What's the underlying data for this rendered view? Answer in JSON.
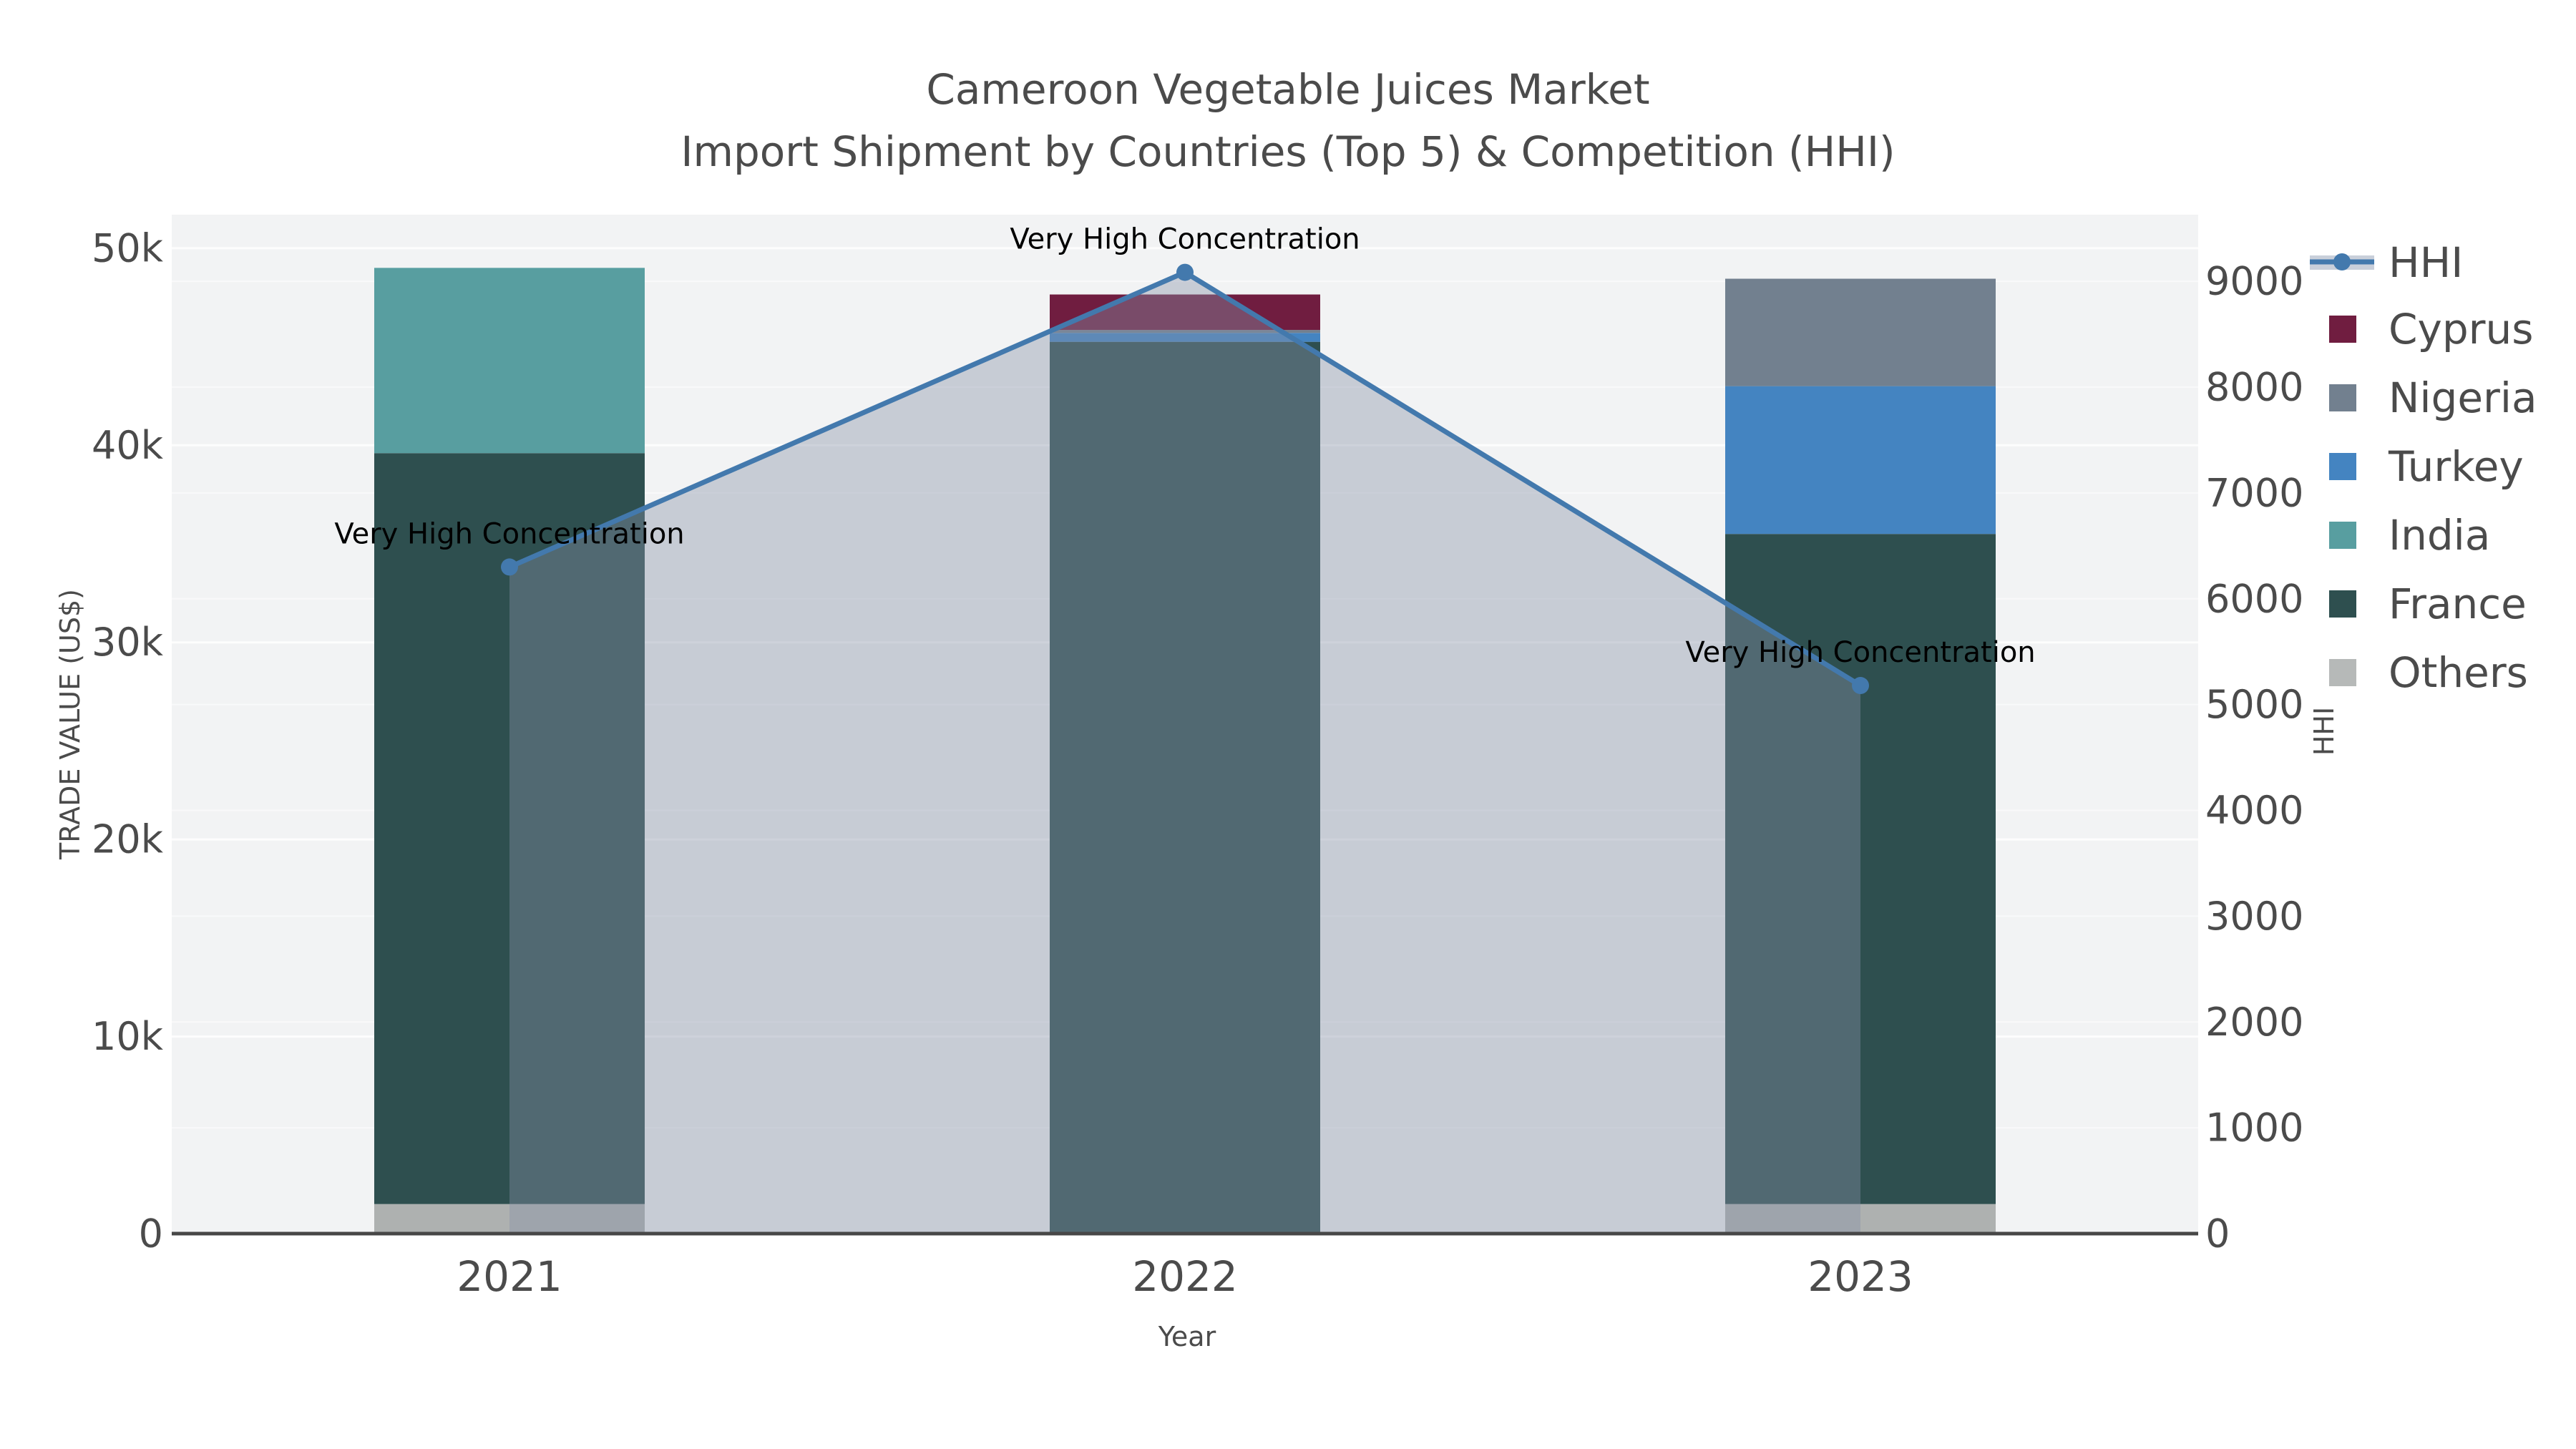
{
  "header": {
    "title_line1": "Cameroon Vegetable Juices Market",
    "title_line2": "Import Shipment by Countries (Top 5) & Competition (HHI)"
  },
  "chart_data": {
    "type": "bar",
    "subtype": "stacked-bars-with-dual-axis-line-area",
    "categories": [
      "2021",
      "2022",
      "2023"
    ],
    "xlabel": "Year",
    "ylabel_left": "TRADE VALUE (US$)",
    "ylabel_right": "HHI",
    "y_left": {
      "max": 51700,
      "ticks": [
        0,
        10000,
        20000,
        30000,
        40000,
        50000
      ],
      "tick_labels": [
        "0",
        "10k",
        "20k",
        "30k",
        "40k",
        "50k"
      ]
    },
    "y_right": {
      "max": 9630,
      "ticks": [
        0,
        1000,
        2000,
        3000,
        4000,
        5000,
        6000,
        7000,
        8000,
        9000
      ],
      "tick_labels": [
        "0",
        "1000",
        "2000",
        "3000",
        "4000",
        "5000",
        "6000",
        "7000",
        "8000",
        "9000"
      ]
    },
    "series": [
      {
        "name": "Others",
        "color": "#aeb1b0",
        "values": [
          1500,
          0,
          1500
        ]
      },
      {
        "name": "France",
        "color": "#2e4f4f",
        "values": [
          38100,
          45250,
          34000
        ]
      },
      {
        "name": "India",
        "color": "#589ea0",
        "values": [
          9400,
          0,
          0
        ]
      },
      {
        "name": "Turkey",
        "color": "#4484c1",
        "values": [
          0,
          450,
          7500
        ]
      },
      {
        "name": "Nigeria",
        "color": "#72808f",
        "values": [
          0,
          150,
          5450
        ]
      },
      {
        "name": "Cyprus",
        "color": "#701d40",
        "values": [
          0,
          1800,
          0
        ]
      }
    ],
    "hhi_series": {
      "name": "HHI",
      "values": [
        6300,
        9085,
        5180
      ],
      "line_color": "#4379ad",
      "marker_color": "#4379ad",
      "area_fill_color": "rgba(134,145,168,0.40)"
    },
    "annotations": [
      {
        "text": "Very High Concentration",
        "category": "2021"
      },
      {
        "text": "Very High Concentration",
        "category": "2022"
      },
      {
        "text": "Very High Concentration",
        "category": "2023"
      }
    ],
    "legend": {
      "position": "right",
      "items": [
        {
          "label": "HHI",
          "type": "line",
          "color": "#4379ad",
          "band_color": "#c9cfda"
        },
        {
          "label": "Cyprus",
          "type": "swatch",
          "color": "#701d40"
        },
        {
          "label": "Nigeria",
          "type": "swatch",
          "color": "#72808f"
        },
        {
          "label": "Turkey",
          "type": "swatch",
          "color": "#4484c1"
        },
        {
          "label": "India",
          "type": "swatch",
          "color": "#589ea0"
        },
        {
          "label": "France",
          "type": "swatch",
          "color": "#2e4f4f"
        },
        {
          "label": "Others",
          "type": "swatch",
          "color": "#b6b9b8"
        }
      ]
    },
    "style": {
      "plot_bg": "#f2f3f4",
      "gridline_color": "#ffffff",
      "axis_line_color": "#474747",
      "text_color": "#4b4b4b"
    }
  }
}
